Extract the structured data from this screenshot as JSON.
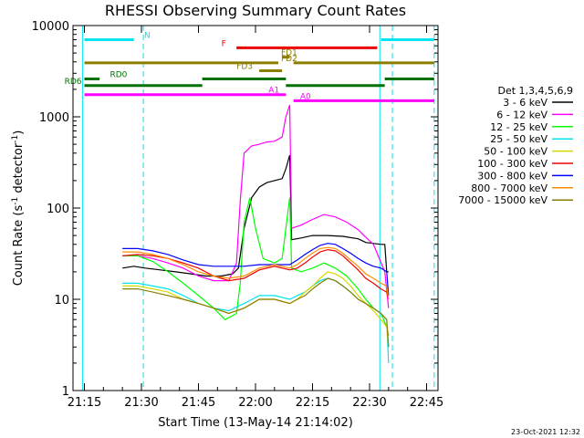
{
  "colors": {
    "background": "#ffffff",
    "axis": "#000000",
    "n_flag": "#00e5ee",
    "f_flag": "#ee0000",
    "fd_flag": "#8b7d00",
    "rd_flag": "#007000",
    "a_flag": "#ff00ff"
  },
  "chart_data": {
    "type": "line",
    "title": "RHESSI Observing Summary Count Rates",
    "xlabel": "Start Time (13-May-14 21:14:02)",
    "ylabel": "Count Rate (s⁻¹ detector⁻¹)",
    "ylabel_main": "Count Rate (s",
    "ylabel_sup1": "-1",
    "ylabel_mid": " detector",
    "ylabel_sup2": "-1",
    "ylabel_end": ")",
    "footer": "23-Oct-2021 12:32",
    "yscale": "log",
    "ylim": [
      1,
      10000
    ],
    "xlim_minutes": [
      -3,
      93
    ],
    "x_ticks": [
      {
        "min": 0,
        "label": "21:15"
      },
      {
        "min": 15,
        "label": "21:30"
      },
      {
        "min": 30,
        "label": "21:45"
      },
      {
        "min": 45,
        "label": "22:00"
      },
      {
        "min": 60,
        "label": "22:15"
      },
      {
        "min": 75,
        "label": "22:30"
      },
      {
        "min": 90,
        "label": "22:45"
      }
    ],
    "y_ticks": [
      {
        "v": 1,
        "label": "1"
      },
      {
        "v": 10,
        "label": "10"
      },
      {
        "v": 100,
        "label": "100"
      },
      {
        "v": 1000,
        "label": "1000"
      },
      {
        "v": 10000,
        "label": "10000"
      }
    ],
    "legend_title": "Det 1,3,4,5,6,9",
    "series": [
      {
        "name": "3 - 6 keV",
        "color": "#000000",
        "points": [
          [
            10,
            22
          ],
          [
            13,
            23
          ],
          [
            16,
            22
          ],
          [
            20,
            21
          ],
          [
            24,
            20
          ],
          [
            28,
            19
          ],
          [
            32,
            18
          ],
          [
            36,
            18
          ],
          [
            39,
            19
          ],
          [
            40.5,
            22
          ],
          [
            42,
            60
          ],
          [
            44,
            130
          ],
          [
            46,
            170
          ],
          [
            48,
            190
          ],
          [
            50,
            200
          ],
          [
            52,
            210
          ],
          [
            53,
            270
          ],
          [
            54,
            380
          ],
          [
            54.5,
            45
          ],
          [
            57,
            47
          ],
          [
            60,
            50
          ],
          [
            64,
            50
          ],
          [
            68,
            49
          ],
          [
            72,
            46
          ],
          [
            74,
            42
          ],
          [
            78,
            40
          ],
          [
            79,
            40
          ],
          [
            79.5,
            20
          ],
          [
            80,
            20
          ]
        ]
      },
      {
        "name": "6 - 12 keV",
        "color": "#ff00ff",
        "points": [
          [
            10,
            30
          ],
          [
            14,
            30
          ],
          [
            18,
            28
          ],
          [
            22,
            25
          ],
          [
            26,
            22
          ],
          [
            30,
            18
          ],
          [
            34,
            16
          ],
          [
            38,
            16
          ],
          [
            40,
            25
          ],
          [
            41,
            120
          ],
          [
            42,
            400
          ],
          [
            44,
            480
          ],
          [
            46,
            500
          ],
          [
            48,
            530
          ],
          [
            50,
            540
          ],
          [
            52,
            600
          ],
          [
            53,
            1000
          ],
          [
            54,
            1350
          ],
          [
            54.5,
            60
          ],
          [
            57,
            65
          ],
          [
            60,
            75
          ],
          [
            63,
            85
          ],
          [
            66,
            80
          ],
          [
            69,
            70
          ],
          [
            72,
            58
          ],
          [
            74,
            48
          ],
          [
            76,
            40
          ],
          [
            77,
            32
          ],
          [
            79,
            20
          ],
          [
            80,
            8
          ]
        ]
      },
      {
        "name": "12 - 25 keV",
        "color": "#00ff00",
        "points": [
          [
            10,
            30
          ],
          [
            14,
            30
          ],
          [
            18,
            26
          ],
          [
            22,
            20
          ],
          [
            26,
            15
          ],
          [
            30,
            11
          ],
          [
            34,
            8
          ],
          [
            37,
            6
          ],
          [
            40,
            7
          ],
          [
            41,
            15
          ],
          [
            42,
            70
          ],
          [
            43.5,
            130
          ],
          [
            45,
            60
          ],
          [
            47,
            28
          ],
          [
            50,
            25
          ],
          [
            52,
            28
          ],
          [
            53,
            60
          ],
          [
            54,
            130
          ],
          [
            54.5,
            22
          ],
          [
            57,
            20
          ],
          [
            60,
            22
          ],
          [
            63,
            25
          ],
          [
            66,
            22
          ],
          [
            69,
            18
          ],
          [
            72,
            13
          ],
          [
            74,
            10
          ],
          [
            76,
            8
          ],
          [
            78,
            7
          ],
          [
            79.5,
            5
          ],
          [
            80,
            4
          ]
        ]
      },
      {
        "name": "25 - 50 keV",
        "color": "#00e5ee",
        "points": [
          [
            10,
            15
          ],
          [
            14,
            15
          ],
          [
            18,
            14
          ],
          [
            22,
            13
          ],
          [
            26,
            11
          ],
          [
            30,
            9
          ],
          [
            34,
            8
          ],
          [
            38,
            7.5
          ],
          [
            42,
            9
          ],
          [
            46,
            11
          ],
          [
            50,
            11
          ],
          [
            54,
            10
          ],
          [
            56,
            11
          ],
          [
            58,
            12
          ],
          [
            60,
            14
          ],
          [
            62,
            16
          ],
          [
            64,
            17
          ],
          [
            66,
            16
          ],
          [
            68,
            14
          ],
          [
            70,
            12
          ],
          [
            72,
            10
          ],
          [
            74,
            9
          ],
          [
            76,
            8
          ],
          [
            78,
            7
          ],
          [
            79.5,
            6
          ],
          [
            80,
            2
          ]
        ]
      },
      {
        "name": "50 - 100 keV",
        "color": "#d8d800",
        "points": [
          [
            10,
            14
          ],
          [
            14,
            14
          ],
          [
            18,
            13
          ],
          [
            22,
            12
          ],
          [
            26,
            10
          ],
          [
            30,
            9
          ],
          [
            34,
            8
          ],
          [
            38,
            7
          ],
          [
            42,
            8
          ],
          [
            46,
            10
          ],
          [
            50,
            10
          ],
          [
            54,
            9
          ],
          [
            56,
            10
          ],
          [
            58,
            12
          ],
          [
            60,
            14
          ],
          [
            62,
            17
          ],
          [
            64,
            20
          ],
          [
            66,
            19
          ],
          [
            68,
            17
          ],
          [
            70,
            14
          ],
          [
            72,
            11
          ],
          [
            74,
            9
          ],
          [
            76,
            7.5
          ],
          [
            78,
            6
          ],
          [
            79.5,
            5
          ],
          [
            80,
            3
          ]
        ]
      },
      {
        "name": "100 - 300 keV",
        "color": "#ee0000",
        "points": [
          [
            10,
            30
          ],
          [
            14,
            31
          ],
          [
            18,
            30
          ],
          [
            22,
            28
          ],
          [
            26,
            25
          ],
          [
            30,
            22
          ],
          [
            34,
            18
          ],
          [
            38,
            16
          ],
          [
            42,
            17
          ],
          [
            46,
            21
          ],
          [
            50,
            23
          ],
          [
            54,
            21
          ],
          [
            56,
            22
          ],
          [
            58,
            25
          ],
          [
            60,
            29
          ],
          [
            62,
            33
          ],
          [
            64,
            35
          ],
          [
            66,
            34
          ],
          [
            68,
            30
          ],
          [
            70,
            25
          ],
          [
            72,
            21
          ],
          [
            74,
            17
          ],
          [
            76,
            15
          ],
          [
            78,
            13
          ],
          [
            79.5,
            12
          ],
          [
            80,
            10
          ]
        ]
      },
      {
        "name": "300 - 800 keV",
        "color": "#0000ff",
        "points": [
          [
            10,
            36
          ],
          [
            14,
            36
          ],
          [
            18,
            34
          ],
          [
            22,
            31
          ],
          [
            26,
            27
          ],
          [
            30,
            24
          ],
          [
            34,
            23
          ],
          [
            38,
            23
          ],
          [
            42,
            23
          ],
          [
            46,
            24
          ],
          [
            50,
            24
          ],
          [
            54,
            24
          ],
          [
            56,
            27
          ],
          [
            58,
            31
          ],
          [
            60,
            35
          ],
          [
            62,
            39
          ],
          [
            64,
            41
          ],
          [
            66,
            40
          ],
          [
            68,
            36
          ],
          [
            70,
            32
          ],
          [
            72,
            28
          ],
          [
            74,
            25
          ],
          [
            76,
            23
          ],
          [
            78,
            22
          ],
          [
            79.5,
            20
          ],
          [
            80,
            11
          ]
        ]
      },
      {
        "name": "800 - 7000 keV",
        "color": "#ff8c00",
        "points": [
          [
            10,
            33
          ],
          [
            14,
            33
          ],
          [
            18,
            31
          ],
          [
            22,
            28
          ],
          [
            26,
            24
          ],
          [
            30,
            20
          ],
          [
            34,
            18
          ],
          [
            38,
            17
          ],
          [
            42,
            18
          ],
          [
            46,
            22
          ],
          [
            50,
            24
          ],
          [
            54,
            22
          ],
          [
            56,
            24
          ],
          [
            58,
            28
          ],
          [
            60,
            32
          ],
          [
            62,
            36
          ],
          [
            64,
            37
          ],
          [
            66,
            36
          ],
          [
            68,
            32
          ],
          [
            70,
            27
          ],
          [
            72,
            23
          ],
          [
            74,
            19
          ],
          [
            76,
            17
          ],
          [
            78,
            15
          ],
          [
            79.5,
            14
          ],
          [
            80,
            10
          ]
        ]
      },
      {
        "name": "7000 - 15000 keV",
        "color": "#8b7d00",
        "points": [
          [
            10,
            13
          ],
          [
            14,
            13
          ],
          [
            18,
            12
          ],
          [
            22,
            11
          ],
          [
            26,
            10
          ],
          [
            30,
            9
          ],
          [
            34,
            8
          ],
          [
            38,
            7
          ],
          [
            42,
            8
          ],
          [
            46,
            10
          ],
          [
            50,
            10
          ],
          [
            54,
            9
          ],
          [
            56,
            10
          ],
          [
            58,
            11
          ],
          [
            60,
            13
          ],
          [
            62,
            15
          ],
          [
            64,
            17
          ],
          [
            66,
            16
          ],
          [
            68,
            14
          ],
          [
            70,
            12
          ],
          [
            72,
            10
          ],
          [
            74,
            9
          ],
          [
            76,
            8
          ],
          [
            78,
            7
          ],
          [
            79.5,
            6
          ],
          [
            80,
            3
          ]
        ]
      }
    ],
    "flags": [
      {
        "label": "N",
        "color": "#00e5ee",
        "level": 7000,
        "segments": [
          [
            0,
            13
          ],
          [
            78,
            92
          ]
        ],
        "label_at": 15,
        "label_side": "right"
      },
      {
        "label": "F",
        "color": "#ee0000",
        "level": 5700,
        "segments": [
          [
            40,
            77
          ]
        ],
        "label_at": 38,
        "label_side": "left"
      },
      {
        "label": "FD1",
        "color": "#8b7d00",
        "level": 4500,
        "segments": [
          [
            52,
            54
          ]
        ],
        "label_at": 51,
        "label_side": "right"
      },
      {
        "label": "FD2",
        "color": "#8b7d00",
        "level": 3900,
        "segments": [
          [
            0,
            51
          ],
          [
            55,
            92
          ]
        ],
        "label_at": 51,
        "label_side": "right"
      },
      {
        "label": "FD3",
        "color": "#8b7d00",
        "level": 3200,
        "segments": [
          [
            46,
            52
          ]
        ],
        "label_at": 45,
        "label_side": "left"
      },
      {
        "label": "RD0",
        "color": "#007000",
        "level": 2600,
        "segments": [
          [
            0,
            4
          ],
          [
            31,
            53
          ],
          [
            79,
            92
          ]
        ],
        "label_at": 6,
        "label_side": "right"
      },
      {
        "label": "RD6",
        "color": "#007000",
        "level": 2200,
        "segments": [
          [
            0,
            31
          ],
          [
            53,
            79
          ]
        ],
        "label_at": 0,
        "label_side": "left"
      },
      {
        "label": "A1",
        "color": "#ff00ff",
        "level": 1750,
        "segments": [
          [
            0,
            53
          ]
        ],
        "label_at": 52,
        "label_side": "left"
      },
      {
        "label": "A0",
        "color": "#ff00ff",
        "level": 1500,
        "segments": [
          [
            55,
            92
          ]
        ],
        "label_at": 56,
        "label_side": "right"
      }
    ],
    "vlines": [
      {
        "min": -0.5,
        "color": "#00e5ee",
        "style": "solid"
      },
      {
        "min": 15.5,
        "color": "#00e5ee",
        "style": "dashed"
      },
      {
        "min": 77.7,
        "color": "#00e5ee",
        "style": "solid"
      },
      {
        "min": 81,
        "color": "#00e5ee",
        "style": "dashed"
      },
      {
        "min": 92,
        "color": "#00e5ee",
        "style": "dashed"
      }
    ]
  }
}
